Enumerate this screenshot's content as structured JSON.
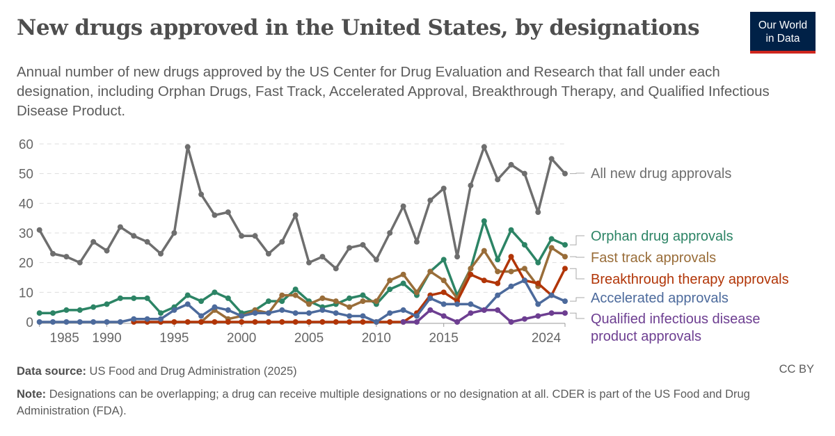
{
  "header": {
    "title": "New drugs approved in the United States, by designations",
    "subtitle": "Annual number of new drugs approved by the US Center for Drug Evaluation and Research that fall under each designation, including Orphan Drugs, Fast Track, Accelerated Approval, Breakthrough Therapy, and Qualified Infectious Disease Product.",
    "logo_line1": "Our World",
    "logo_line2": "in Data"
  },
  "footer": {
    "source_label": "Data source:",
    "source_text": " US Food and Drug Administration (2025)",
    "license": "CC BY",
    "note_label": "Note:",
    "note_text": " Designations can be overlapping; a drug can receive multiple designations or no designation at all. CDER is part of the US Food and Drug Administration (FDA)."
  },
  "chart_data": {
    "type": "line",
    "title": "New drugs approved in the United States, by designations",
    "ylim": [
      0,
      60
    ],
    "xlim": [
      1985,
      2024
    ],
    "grid": "horizontal dashed",
    "legend": "right, labels at line ends",
    "y_ticks": [
      "0",
      "10",
      "20",
      "30",
      "40",
      "50",
      "60"
    ],
    "x_ticks": [
      {
        "value": 1985,
        "label": "1985"
      },
      {
        "value": 1990,
        "label": "1990"
      },
      {
        "value": 1995,
        "label": "1995"
      },
      {
        "value": 2000,
        "label": "2000"
      },
      {
        "value": 2005,
        "label": "2005"
      },
      {
        "value": 2010,
        "label": "2010"
      },
      {
        "value": 2015,
        "label": "2015"
      },
      {
        "value": 2024,
        "label": "2024"
      }
    ],
    "x": [
      1985,
      1986,
      1987,
      1988,
      1989,
      1990,
      1991,
      1992,
      1993,
      1994,
      1995,
      1996,
      1997,
      1998,
      1999,
      2000,
      2001,
      2002,
      2003,
      2004,
      2005,
      2006,
      2007,
      2008,
      2009,
      2010,
      2011,
      2012,
      2013,
      2014,
      2015,
      2016,
      2017,
      2018,
      2019,
      2020,
      2021,
      2022,
      2023,
      2024
    ],
    "series": [
      {
        "name": "All new drug approvals",
        "color": "#6e6e6e",
        "values": [
          31,
          23,
          22,
          20,
          27,
          24,
          32,
          29,
          27,
          23,
          30,
          59,
          43,
          36,
          37,
          29,
          29,
          23,
          27,
          36,
          20,
          22,
          18,
          25,
          26,
          21,
          30,
          39,
          27,
          41,
          45,
          22,
          46,
          59,
          48,
          53,
          50,
          37,
          55,
          50
        ]
      },
      {
        "name": "Orphan drug approvals",
        "color": "#2c8465",
        "values": [
          3,
          3,
          4,
          4,
          5,
          6,
          8,
          8,
          8,
          3,
          5,
          9,
          7,
          10,
          8,
          3,
          4,
          7,
          7,
          11,
          7,
          5,
          6,
          8,
          9,
          6,
          11,
          13,
          9,
          17,
          21,
          9,
          18,
          34,
          21,
          31,
          26,
          20,
          28,
          26
        ]
      },
      {
        "name": "Fast track approvals",
        "color": "#996d39",
        "values": [
          null,
          null,
          null,
          null,
          null,
          null,
          null,
          null,
          null,
          null,
          null,
          null,
          0,
          4,
          1,
          2,
          4,
          3,
          9,
          9,
          6,
          8,
          7,
          5,
          7,
          7,
          14,
          16,
          10,
          17,
          14,
          8,
          18,
          24,
          17,
          17,
          18,
          12,
          25,
          22
        ]
      },
      {
        "name": "Breakthrough therapy approvals",
        "color": "#b13507",
        "values": [
          null,
          null,
          null,
          null,
          null,
          null,
          null,
          0,
          0,
          0,
          0,
          0,
          0,
          0,
          0,
          0,
          0,
          0,
          0,
          0,
          0,
          0,
          0,
          0,
          0,
          0,
          0,
          0,
          3,
          9,
          10,
          7,
          16,
          14,
          13,
          22,
          14,
          13,
          9,
          18
        ]
      },
      {
        "name": "Accelerated approvals",
        "color": "#4c6a9c",
        "values": [
          0,
          0,
          0,
          0,
          0,
          0,
          0,
          1,
          1,
          1,
          4,
          6,
          2,
          5,
          4,
          2,
          3,
          3,
          4,
          3,
          3,
          4,
          3,
          2,
          2,
          0,
          3,
          4,
          2,
          8,
          6,
          6,
          6,
          4,
          9,
          12,
          14,
          6,
          9,
          7
        ]
      },
      {
        "name": "Qualified infectious disease product approvals",
        "color": "#6d3e91",
        "values": [
          null,
          null,
          null,
          null,
          null,
          null,
          null,
          null,
          null,
          null,
          null,
          null,
          null,
          null,
          null,
          null,
          null,
          null,
          null,
          null,
          null,
          null,
          null,
          null,
          null,
          null,
          null,
          0,
          0,
          4,
          2,
          0,
          3,
          4,
          4,
          0,
          1,
          2,
          3,
          3
        ]
      }
    ]
  }
}
